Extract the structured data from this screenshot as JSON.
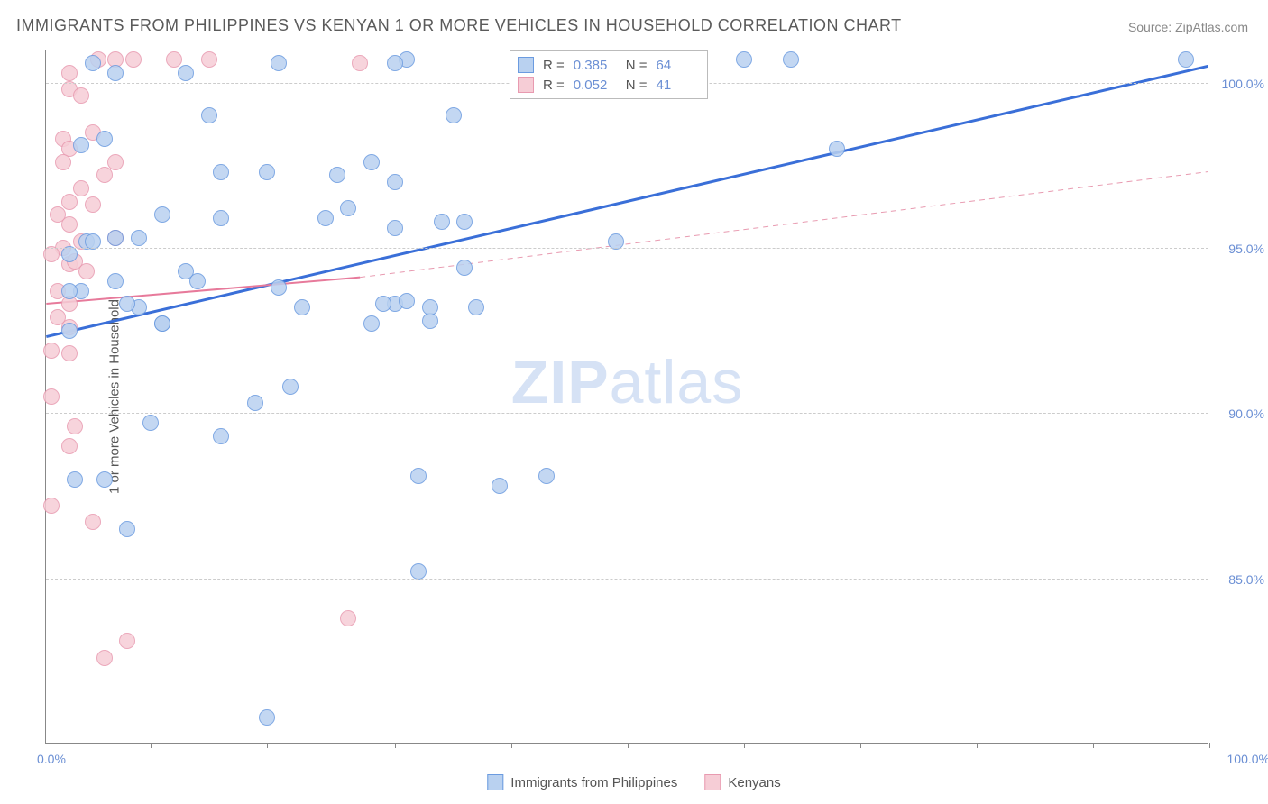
{
  "title": "IMMIGRANTS FROM PHILIPPINES VS KENYAN 1 OR MORE VEHICLES IN HOUSEHOLD CORRELATION CHART",
  "source": "Source: ZipAtlas.com",
  "watermark": {
    "part1": "ZIP",
    "part2": "atlas"
  },
  "yaxis_title": "1 or more Vehicles in Household",
  "chart": {
    "type": "scatter",
    "background_color": "#ffffff",
    "grid_color": "#cccccc",
    "xlim": [
      0,
      100
    ],
    "ylim": [
      80,
      101
    ],
    "xtick_positions": [
      9,
      19,
      30,
      40,
      50,
      60,
      70,
      80,
      90,
      100
    ],
    "xlabel_min": "0.0%",
    "xlabel_max": "100.0%",
    "ytick_positions": [
      85,
      90,
      95,
      100
    ],
    "ytick_labels": [
      "85.0%",
      "90.0%",
      "95.0%",
      "100.0%"
    ],
    "marker_radius": 9,
    "marker_stroke_width": 1.5,
    "series": [
      {
        "name": "Immigrants from Philippines",
        "color_fill": "#b9d1f0",
        "color_stroke": "#6b9be0",
        "R_label": "R =",
        "R_value": "0.385",
        "N_label": "N =",
        "N_value": "64",
        "trend": {
          "x1": 0,
          "y1": 92.3,
          "x2": 100,
          "y2": 100.5,
          "width": 3,
          "color": "#3a6fd8",
          "dash": "none"
        },
        "trend_ext": null,
        "points": [
          [
            31,
            100.7
          ],
          [
            60,
            100.7
          ],
          [
            64,
            100.7
          ],
          [
            98,
            100.7
          ],
          [
            12,
            100.3
          ],
          [
            6,
            100.3
          ],
          [
            2.5,
            88.0
          ],
          [
            3,
            93.7
          ],
          [
            3.5,
            95.2
          ],
          [
            20,
            100.6
          ],
          [
            15,
            97.3
          ],
          [
            19,
            97.3
          ],
          [
            24,
            95.9
          ],
          [
            25,
            97.2
          ],
          [
            26,
            96.2
          ],
          [
            15,
            95.9
          ],
          [
            20,
            93.8
          ],
          [
            22,
            93.2
          ],
          [
            18,
            90.3
          ],
          [
            21,
            90.8
          ],
          [
            10,
            92.7
          ],
          [
            12,
            94.3
          ],
          [
            8,
            93.2
          ],
          [
            9,
            89.7
          ],
          [
            15,
            89.3
          ],
          [
            28,
            97.6
          ],
          [
            30,
            97.0
          ],
          [
            30,
            95.6
          ],
          [
            30,
            93.3
          ],
          [
            31,
            93.4
          ],
          [
            32,
            88.1
          ],
          [
            34,
            95.8
          ],
          [
            36,
            95.8
          ],
          [
            36,
            94.4
          ],
          [
            33,
            92.8
          ],
          [
            28,
            92.7
          ],
          [
            29,
            93.3
          ],
          [
            37,
            93.2
          ],
          [
            39,
            87.8
          ],
          [
            43,
            88.1
          ],
          [
            30,
            100.6
          ],
          [
            35,
            99.0
          ],
          [
            19,
            80.8
          ],
          [
            32,
            85.2
          ],
          [
            33,
            93.2
          ],
          [
            7,
            86.5
          ],
          [
            4,
            100.6
          ],
          [
            3,
            98.1
          ],
          [
            5,
            98.3
          ],
          [
            14,
            99.0
          ],
          [
            6,
            94.0
          ],
          [
            6,
            95.3
          ],
          [
            8,
            95.3
          ],
          [
            4,
            95.2
          ],
          [
            2,
            94.8
          ],
          [
            2,
            93.7
          ],
          [
            2,
            92.5
          ],
          [
            7,
            93.3
          ],
          [
            10,
            92.7
          ],
          [
            49,
            95.2
          ],
          [
            68,
            98.0
          ],
          [
            5,
            88.0
          ],
          [
            10,
            96.0
          ],
          [
            13,
            94.0
          ]
        ]
      },
      {
        "name": "Kenyans",
        "color_fill": "#f6cdd6",
        "color_stroke": "#e89ab0",
        "R_label": "R =",
        "R_value": "0.052",
        "N_label": "N =",
        "N_value": "41",
        "trend": {
          "x1": 0,
          "y1": 93.3,
          "x2": 27,
          "y2": 94.1,
          "width": 2,
          "color": "#e77a9b",
          "dash": "none"
        },
        "trend_ext": {
          "x1": 27,
          "y1": 94.1,
          "x2": 100,
          "y2": 97.3,
          "width": 1,
          "color": "#e89ab0",
          "dash": "6,5"
        },
        "points": [
          [
            4.5,
            100.7
          ],
          [
            6,
            100.7
          ],
          [
            7.5,
            100.7
          ],
          [
            11,
            100.7
          ],
          [
            14,
            100.7
          ],
          [
            2,
            100.3
          ],
          [
            2,
            99.8
          ],
          [
            3,
            99.6
          ],
          [
            1.5,
            98.3
          ],
          [
            2,
            98.0
          ],
          [
            5,
            97.2
          ],
          [
            6,
            97.6
          ],
          [
            4,
            96.3
          ],
          [
            6,
            95.3
          ],
          [
            2,
            96.4
          ],
          [
            1.5,
            95.0
          ],
          [
            2,
            94.5
          ],
          [
            2.5,
            94.6
          ],
          [
            3.5,
            94.3
          ],
          [
            0.5,
            94.8
          ],
          [
            1,
            93.7
          ],
          [
            2,
            93.3
          ],
          [
            1,
            92.9
          ],
          [
            2,
            92.6
          ],
          [
            0.5,
            91.9
          ],
          [
            2,
            91.8
          ],
          [
            0.5,
            90.5
          ],
          [
            2.5,
            89.6
          ],
          [
            2,
            89.0
          ],
          [
            0.5,
            87.2
          ],
          [
            4,
            86.7
          ],
          [
            7,
            83.1
          ],
          [
            5,
            82.6
          ],
          [
            26,
            83.8
          ],
          [
            27,
            100.6
          ],
          [
            2,
            95.7
          ],
          [
            4,
            98.5
          ],
          [
            3,
            96.8
          ],
          [
            1,
            96.0
          ],
          [
            1.5,
            97.6
          ],
          [
            3,
            95.2
          ]
        ]
      }
    ]
  },
  "colors": {
    "title_text": "#5a5a5a",
    "axis_text": "#6b8fd4",
    "axis_line": "#888888"
  }
}
